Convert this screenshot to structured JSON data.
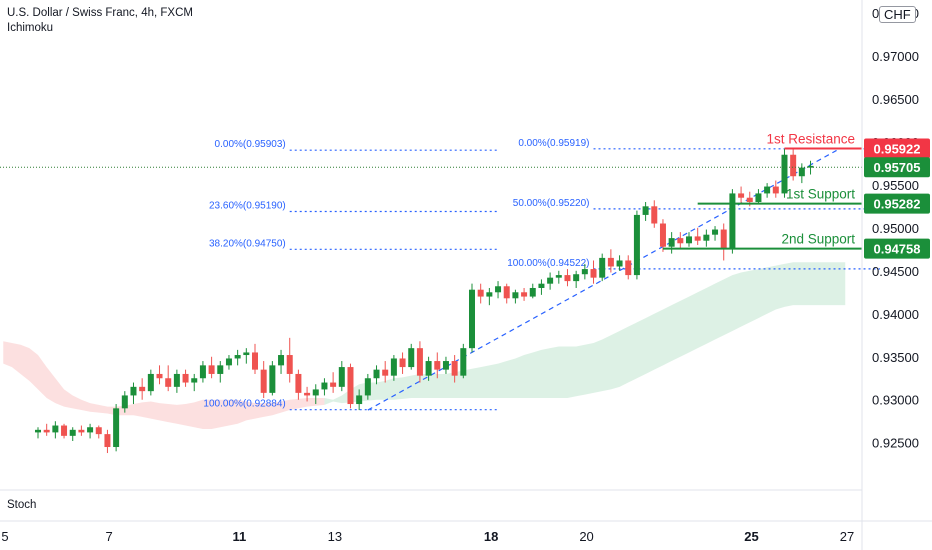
{
  "header": {
    "title": "U.S. Dollar / Swiss Franc, 4h, FXCM",
    "indicator": "Ichimoku",
    "currency": "CHF",
    "lower_pane": "Stoch"
  },
  "colors": {
    "up": "#26a69a",
    "up_dark": "#1b8f3a",
    "down": "#ef5350",
    "fib": "#2962ff",
    "resistance": "#f23645",
    "support": "#1b8f3a",
    "cloud_bull": "#d7efe1",
    "cloud_bear": "#fbdada",
    "last_price_line": "#2e7d32"
  },
  "chart_data": {
    "type": "candlestick",
    "y_axis": {
      "range": [
        0.9195,
        0.9765
      ],
      "ticks": [
        "0.97500",
        "0.97000",
        "0.96500",
        "0.96000",
        "0.95500",
        "0.95000",
        "0.94500",
        "0.94000",
        "0.93500",
        "0.93000",
        "0.92500"
      ],
      "tick_values": [
        0.975,
        0.97,
        0.965,
        0.96,
        0.955,
        0.95,
        0.945,
        0.94,
        0.935,
        0.93,
        0.925
      ]
    },
    "x_axis": {
      "labels": [
        {
          "label": "5",
          "bar": 0,
          "bold": false
        },
        {
          "label": "7",
          "bar": 12,
          "bold": false
        },
        {
          "label": "11",
          "bar": 27,
          "bold": true
        },
        {
          "label": "13",
          "bar": 38,
          "bold": false
        },
        {
          "label": "18",
          "bar": 56,
          "bold": true
        },
        {
          "label": "20",
          "bar": 67,
          "bold": false
        },
        {
          "label": "25",
          "bar": 86,
          "bold": true
        },
        {
          "label": "27",
          "bar": 97,
          "bold": false
        }
      ]
    },
    "candles": [
      [
        0.9262,
        0.9268,
        0.9255,
        0.9265
      ],
      [
        0.9265,
        0.9272,
        0.9258,
        0.9262
      ],
      [
        0.9262,
        0.9275,
        0.9255,
        0.927
      ],
      [
        0.927,
        0.9272,
        0.9255,
        0.9258
      ],
      [
        0.9258,
        0.9268,
        0.9252,
        0.9265
      ],
      [
        0.9265,
        0.927,
        0.9258,
        0.9262
      ],
      [
        0.9262,
        0.9272,
        0.9255,
        0.9268
      ],
      [
        0.9268,
        0.927,
        0.9255,
        0.926
      ],
      [
        0.926,
        0.9265,
        0.9238,
        0.9245
      ],
      [
        0.9245,
        0.9295,
        0.924,
        0.929
      ],
      [
        0.929,
        0.931,
        0.9285,
        0.9305
      ],
      [
        0.9305,
        0.932,
        0.9295,
        0.9315
      ],
      [
        0.9315,
        0.9325,
        0.93,
        0.931
      ],
      [
        0.931,
        0.9335,
        0.9305,
        0.933
      ],
      [
        0.933,
        0.934,
        0.9318,
        0.9325
      ],
      [
        0.9325,
        0.934,
        0.931,
        0.9315
      ],
      [
        0.9315,
        0.9335,
        0.9308,
        0.933
      ],
      [
        0.933,
        0.9335,
        0.9315,
        0.932
      ],
      [
        0.932,
        0.933,
        0.931,
        0.9325
      ],
      [
        0.9325,
        0.9345,
        0.932,
        0.934
      ],
      [
        0.934,
        0.935,
        0.9325,
        0.933
      ],
      [
        0.933,
        0.9345,
        0.932,
        0.934
      ],
      [
        0.934,
        0.9352,
        0.9335,
        0.9348
      ],
      [
        0.9348,
        0.9358,
        0.934,
        0.9352
      ],
      [
        0.9352,
        0.936,
        0.9342,
        0.9355
      ],
      [
        0.9355,
        0.9365,
        0.933,
        0.9335
      ],
      [
        0.9335,
        0.9345,
        0.9302,
        0.9308
      ],
      [
        0.9308,
        0.9345,
        0.9305,
        0.934
      ],
      [
        0.934,
        0.9358,
        0.933,
        0.9352
      ],
      [
        0.9352,
        0.9372,
        0.932,
        0.933
      ],
      [
        0.933,
        0.9335,
        0.93,
        0.9308
      ],
      [
        0.9308,
        0.9315,
        0.9298,
        0.9305
      ],
      [
        0.9305,
        0.9318,
        0.9295,
        0.9312
      ],
      [
        0.9312,
        0.9325,
        0.9305,
        0.932
      ],
      [
        0.932,
        0.9332,
        0.9308,
        0.9315
      ],
      [
        0.9315,
        0.9345,
        0.931,
        0.9338
      ],
      [
        0.9338,
        0.9342,
        0.929,
        0.9295
      ],
      [
        0.9295,
        0.9312,
        0.9288,
        0.9305
      ],
      [
        0.9305,
        0.933,
        0.93,
        0.9325
      ],
      [
        0.9325,
        0.934,
        0.9318,
        0.9335
      ],
      [
        0.9335,
        0.9345,
        0.932,
        0.9328
      ],
      [
        0.9328,
        0.9352,
        0.9322,
        0.9348
      ],
      [
        0.9348,
        0.9355,
        0.933,
        0.9338
      ],
      [
        0.9338,
        0.9365,
        0.9335,
        0.936
      ],
      [
        0.936,
        0.9368,
        0.932,
        0.9328
      ],
      [
        0.9328,
        0.935,
        0.9322,
        0.9345
      ],
      [
        0.9345,
        0.9355,
        0.9325,
        0.9335
      ],
      [
        0.9335,
        0.935,
        0.933,
        0.9345
      ],
      [
        0.9345,
        0.9352,
        0.932,
        0.9328
      ],
      [
        0.9328,
        0.9365,
        0.9325,
        0.936
      ],
      [
        0.936,
        0.9435,
        0.9355,
        0.9428
      ],
      [
        0.9428,
        0.9435,
        0.9412,
        0.942
      ],
      [
        0.942,
        0.943,
        0.941,
        0.9425
      ],
      [
        0.9425,
        0.9438,
        0.9418,
        0.9432
      ],
      [
        0.9432,
        0.9435,
        0.9412,
        0.9418
      ],
      [
        0.9418,
        0.9428,
        0.9412,
        0.9425
      ],
      [
        0.9425,
        0.943,
        0.9415,
        0.942
      ],
      [
        0.942,
        0.9435,
        0.9418,
        0.943
      ],
      [
        0.943,
        0.944,
        0.9422,
        0.9435
      ],
      [
        0.9435,
        0.9448,
        0.9428,
        0.9442
      ],
      [
        0.9442,
        0.945,
        0.9435,
        0.9445
      ],
      [
        0.9445,
        0.9452,
        0.9432,
        0.9438
      ],
      [
        0.9438,
        0.945,
        0.943,
        0.9446
      ],
      [
        0.9446,
        0.9458,
        0.944,
        0.9452
      ],
      [
        0.9452,
        0.9462,
        0.9435,
        0.9442
      ],
      [
        0.9442,
        0.947,
        0.9438,
        0.9465
      ],
      [
        0.9465,
        0.9475,
        0.9448,
        0.9455
      ],
      [
        0.9455,
        0.9468,
        0.945,
        0.9462
      ],
      [
        0.9462,
        0.9468,
        0.944,
        0.9445
      ],
      [
        0.9445,
        0.952,
        0.944,
        0.9515
      ],
      [
        0.9515,
        0.953,
        0.9508,
        0.9525
      ],
      [
        0.9525,
        0.9532,
        0.95,
        0.9505
      ],
      [
        0.9505,
        0.951,
        0.9472,
        0.9478
      ],
      [
        0.9478,
        0.9495,
        0.947,
        0.9488
      ],
      [
        0.9488,
        0.9495,
        0.9475,
        0.9482
      ],
      [
        0.9482,
        0.9495,
        0.9478,
        0.949
      ],
      [
        0.949,
        0.95,
        0.948,
        0.9485
      ],
      [
        0.9485,
        0.9498,
        0.9478,
        0.9492
      ],
      [
        0.9492,
        0.9502,
        0.9485,
        0.9498
      ],
      [
        0.9498,
        0.9505,
        0.9462,
        0.9475
      ],
      [
        0.9475,
        0.9545,
        0.947,
        0.954
      ],
      [
        0.954,
        0.9548,
        0.9528,
        0.9535
      ],
      [
        0.9535,
        0.9542,
        0.9525,
        0.953
      ],
      [
        0.953,
        0.9545,
        0.9528,
        0.954
      ],
      [
        0.954,
        0.9552,
        0.9535,
        0.9548
      ],
      [
        0.9548,
        0.9555,
        0.9535,
        0.954
      ],
      [
        0.954,
        0.9592,
        0.9535,
        0.9585
      ],
      [
        0.9585,
        0.9592,
        0.9555,
        0.956
      ],
      [
        0.956,
        0.9575,
        0.9552,
        0.957
      ],
      [
        0.957,
        0.9578,
        0.9562,
        0.9572
      ]
    ],
    "ichimoku_cloud": [
      [
        0.9368,
        0.9342
      ],
      [
        0.9366,
        0.9338
      ],
      [
        0.9364,
        0.933
      ],
      [
        0.936,
        0.9322
      ],
      [
        0.9352,
        0.9312
      ],
      [
        0.9338,
        0.9302
      ],
      [
        0.9325,
        0.9296
      ],
      [
        0.9312,
        0.9292
      ],
      [
        0.9305,
        0.929
      ],
      [
        0.93,
        0.9288
      ],
      [
        0.9296,
        0.9286
      ],
      [
        0.9294,
        0.9285
      ],
      [
        0.9292,
        0.9284
      ],
      [
        0.9292,
        0.9282
      ],
      [
        0.9293,
        0.9282
      ],
      [
        0.9295,
        0.9282
      ],
      [
        0.9297,
        0.928
      ],
      [
        0.9298,
        0.9278
      ],
      [
        0.9296,
        0.9276
      ],
      [
        0.9295,
        0.9274
      ],
      [
        0.9294,
        0.9272
      ],
      [
        0.9295,
        0.927
      ],
      [
        0.9297,
        0.9268
      ],
      [
        0.93,
        0.9266
      ],
      [
        0.93,
        0.9266
      ],
      [
        0.93,
        0.9268
      ],
      [
        0.93,
        0.927
      ],
      [
        0.93,
        0.9272
      ],
      [
        0.9298,
        0.9276
      ],
      [
        0.9296,
        0.9278
      ],
      [
        0.9296,
        0.928
      ],
      [
        0.9297,
        0.9282
      ],
      [
        0.9298,
        0.9285
      ],
      [
        0.93,
        0.9288
      ],
      [
        0.9301,
        0.929
      ],
      [
        0.9302,
        0.9292
      ],
      [
        0.9302,
        0.9293
      ],
      [
        0.9302,
        0.9294
      ],
      [
        0.93,
        0.9298
      ],
      [
        0.9305,
        0.9296
      ],
      [
        0.9312,
        0.9297
      ],
      [
        0.9318,
        0.9298
      ],
      [
        0.932,
        0.9299
      ],
      [
        0.932,
        0.93
      ],
      [
        0.9322,
        0.93
      ],
      [
        0.9325,
        0.93
      ],
      [
        0.9326,
        0.9301
      ],
      [
        0.9328,
        0.9302
      ],
      [
        0.933,
        0.9302
      ],
      [
        0.933,
        0.9302
      ],
      [
        0.933,
        0.9302
      ],
      [
        0.933,
        0.9302
      ],
      [
        0.9332,
        0.9302
      ],
      [
        0.9334,
        0.9302
      ],
      [
        0.9336,
        0.9302
      ],
      [
        0.9338,
        0.9302
      ],
      [
        0.934,
        0.9302
      ],
      [
        0.9342,
        0.9302
      ],
      [
        0.9345,
        0.9302
      ],
      [
        0.9348,
        0.9302
      ],
      [
        0.9352,
        0.9302
      ],
      [
        0.9355,
        0.9302
      ],
      [
        0.9358,
        0.9302
      ],
      [
        0.936,
        0.9302
      ],
      [
        0.9362,
        0.9302
      ],
      [
        0.9362,
        0.9302
      ],
      [
        0.9362,
        0.9304
      ],
      [
        0.9364,
        0.9306
      ],
      [
        0.9366,
        0.9308
      ],
      [
        0.937,
        0.931
      ],
      [
        0.9375,
        0.9312
      ],
      [
        0.938,
        0.9315
      ],
      [
        0.9385,
        0.932
      ],
      [
        0.939,
        0.9325
      ],
      [
        0.9395,
        0.933
      ],
      [
        0.94,
        0.9335
      ],
      [
        0.9405,
        0.934
      ],
      [
        0.941,
        0.9345
      ],
      [
        0.9415,
        0.935
      ],
      [
        0.942,
        0.9355
      ],
      [
        0.9425,
        0.936
      ],
      [
        0.943,
        0.9365
      ],
      [
        0.9435,
        0.937
      ],
      [
        0.944,
        0.9375
      ],
      [
        0.9445,
        0.938
      ],
      [
        0.9448,
        0.9385
      ],
      [
        0.945,
        0.939
      ],
      [
        0.9452,
        0.9395
      ],
      [
        0.9454,
        0.94
      ],
      [
        0.9456,
        0.9405
      ],
      [
        0.9458,
        0.9408
      ],
      [
        0.946,
        0.941
      ],
      [
        0.946,
        0.941
      ],
      [
        0.946,
        0.941
      ],
      [
        0.946,
        0.941
      ],
      [
        0.946,
        0.941
      ],
      [
        0.946,
        0.941
      ],
      [
        0.946,
        0.941
      ]
    ],
    "fib_left": {
      "from_bar": 29,
      "to_bar": 53,
      "levels": [
        {
          "label": "0.00%(0.95903)",
          "value": 0.95903
        },
        {
          "label": "23.60%(0.95190)",
          "value": 0.9519
        },
        {
          "label": "38.20%(0.94750)",
          "value": 0.9475
        },
        {
          "label": "100.00%(0.92884)",
          "value": 0.92884
        }
      ]
    },
    "fib_right": {
      "from_bar": 64,
      "to_bar": 97,
      "levels": [
        {
          "label": "0.00%(0.95919)",
          "value": 0.95919
        },
        {
          "label": "50.00%(0.95220)",
          "value": 0.9522
        },
        {
          "label": "100.00%(0.94522)",
          "value": 0.94522
        }
      ]
    },
    "levels": [
      {
        "name": "1st Resistance",
        "value": 0.95922,
        "tag": "0.95922",
        "kind": "resistance",
        "from_bar": 86
      },
      {
        "name": "1st Support",
        "value": 0.95282,
        "tag": "0.95282",
        "kind": "support",
        "from_bar": 76
      },
      {
        "name": "2nd Support",
        "value": 0.94758,
        "tag": "0.94758",
        "kind": "support",
        "from_bar": 72
      }
    ],
    "last_price": {
      "value": 0.95705,
      "tag": "0.95705"
    },
    "trendline": {
      "from_bar": 38,
      "from_value": 0.9288,
      "to_bar": 92,
      "to_value": 0.959
    }
  }
}
